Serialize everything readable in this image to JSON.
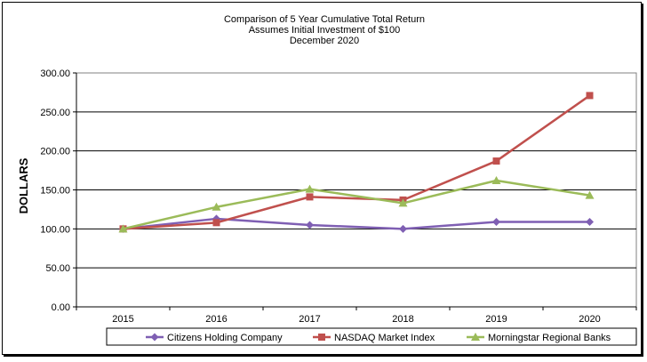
{
  "chart_data": {
    "type": "line",
    "title_lines": [
      "Comparison of 5 Year Cumulative Total Return",
      "Assumes Initial Investment of $100",
      "December 2020"
    ],
    "ylabel": "DOLLARS",
    "xlabel": "",
    "categories": [
      "2015",
      "2016",
      "2017",
      "2018",
      "2019",
      "2020"
    ],
    "ylim": [
      0,
      300
    ],
    "yticks": [
      "0.00",
      "50.00",
      "100.00",
      "150.00",
      "200.00",
      "250.00",
      "300.00"
    ],
    "grid": true,
    "legend_position": "bottom",
    "series": [
      {
        "name": "Citizens Holding Company",
        "color": "#7f5fb3",
        "marker": "diamond",
        "values": [
          100,
          113,
          105,
          100,
          109,
          109
        ]
      },
      {
        "name": "NASDAQ Market Index",
        "color": "#c0504d",
        "marker": "square",
        "values": [
          100,
          108,
          141,
          137,
          187,
          271
        ]
      },
      {
        "name": "Morningstar Regional Banks",
        "color": "#9bbb59",
        "marker": "triangle",
        "values": [
          100,
          128,
          151,
          133,
          162,
          143
        ]
      }
    ]
  }
}
